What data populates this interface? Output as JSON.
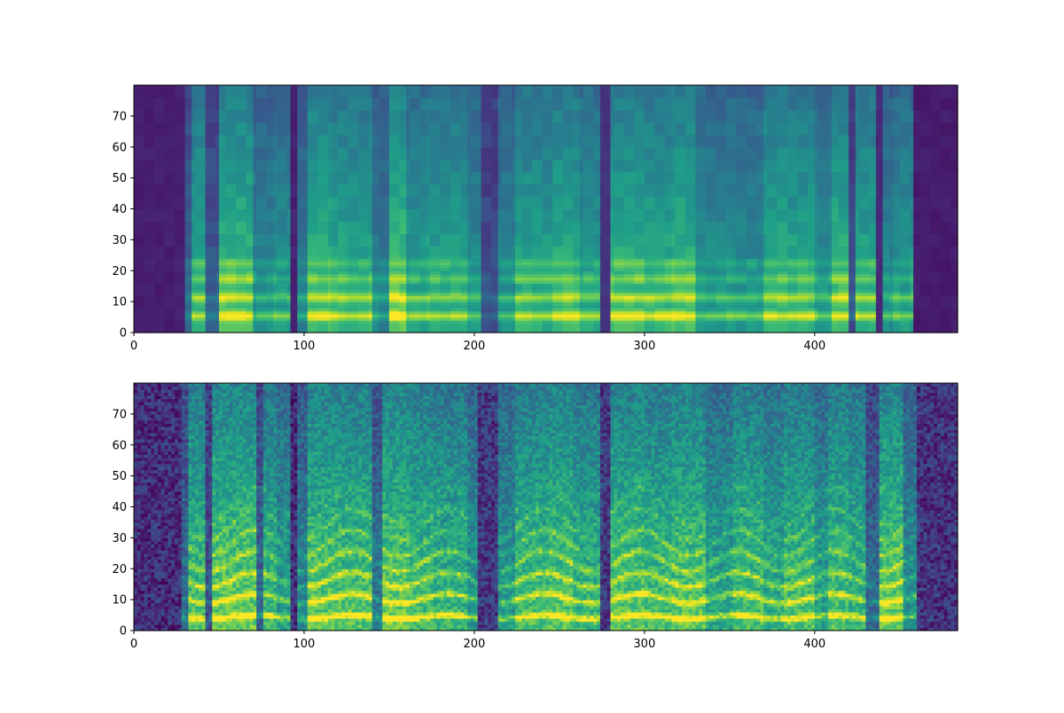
{
  "chart_data": [
    {
      "type": "heatmap",
      "panel": "top",
      "title": "",
      "xlabel": "",
      "ylabel": "",
      "xlim": [
        0,
        484
      ],
      "ylim": [
        0,
        80
      ],
      "n_frames": 484,
      "n_bins": 80,
      "xticks": [
        "0",
        "100",
        "200",
        "300",
        "400"
      ],
      "yticks": [
        "0",
        "10",
        "20",
        "30",
        "40",
        "50",
        "60",
        "70"
      ],
      "xtick_values": [
        0,
        100,
        200,
        300,
        400
      ],
      "ytick_values": [
        0,
        10,
        20,
        30,
        40,
        50,
        60,
        70
      ],
      "colormap": "viridis",
      "value_range": [
        0,
        1
      ],
      "texture": "smooth",
      "segments": [
        [
          0,
          29,
          0.04
        ],
        [
          29,
          34,
          0.3
        ],
        [
          34,
          42,
          0.6
        ],
        [
          42,
          49,
          0.25
        ],
        [
          49,
          70,
          0.68
        ],
        [
          70,
          82,
          0.45
        ],
        [
          82,
          92,
          0.5
        ],
        [
          92,
          96,
          0.06
        ],
        [
          96,
          102,
          0.4
        ],
        [
          102,
          116,
          0.66
        ],
        [
          116,
          124,
          0.62
        ],
        [
          124,
          140,
          0.6
        ],
        [
          140,
          150,
          0.4
        ],
        [
          150,
          160,
          0.72
        ],
        [
          160,
          172,
          0.55
        ],
        [
          172,
          182,
          0.58
        ],
        [
          182,
          196,
          0.58
        ],
        [
          196,
          204,
          0.48
        ],
        [
          204,
          214,
          0.2
        ],
        [
          214,
          224,
          0.45
        ],
        [
          224,
          234,
          0.6
        ],
        [
          234,
          245,
          0.58
        ],
        [
          245,
          262,
          0.64
        ],
        [
          262,
          274,
          0.55
        ],
        [
          274,
          280,
          0.15
        ],
        [
          280,
          300,
          0.65
        ],
        [
          300,
          316,
          0.62
        ],
        [
          316,
          330,
          0.66
        ],
        [
          330,
          336,
          0.5
        ],
        [
          336,
          352,
          0.5
        ],
        [
          352,
          370,
          0.48
        ],
        [
          370,
          384,
          0.62
        ],
        [
          384,
          400,
          0.6
        ],
        [
          400,
          410,
          0.5
        ],
        [
          410,
          420,
          0.66
        ],
        [
          420,
          424,
          0.2
        ],
        [
          424,
          436,
          0.6
        ],
        [
          436,
          440,
          0.1
        ],
        [
          440,
          445,
          0.45
        ],
        [
          445,
          458,
          0.52
        ],
        [
          458,
          484,
          0.03
        ]
      ],
      "harmonic_bands": [
        {
          "center": 5,
          "width": 1.4,
          "strength": 0.55
        },
        {
          "center": 11,
          "width": 1.5,
          "strength": 0.45
        },
        {
          "center": 17,
          "width": 1.5,
          "strength": 0.3
        },
        {
          "center": 22,
          "width": 1.4,
          "strength": 0.22
        }
      ]
    },
    {
      "type": "heatmap",
      "panel": "bottom",
      "title": "",
      "xlabel": "",
      "ylabel": "",
      "xlim": [
        0,
        484
      ],
      "ylim": [
        0,
        80
      ],
      "n_frames": 484,
      "n_bins": 80,
      "xticks": [
        "0",
        "100",
        "200",
        "300",
        "400"
      ],
      "yticks": [
        "0",
        "10",
        "20",
        "30",
        "40",
        "50",
        "60",
        "70"
      ],
      "xtick_values": [
        0,
        100,
        200,
        300,
        400
      ],
      "ytick_values": [
        0,
        10,
        20,
        30,
        40,
        50,
        60,
        70
      ],
      "colormap": "viridis",
      "value_range": [
        0,
        1
      ],
      "texture": "detailed",
      "segments": [
        [
          0,
          28,
          0.12
        ],
        [
          28,
          32,
          0.3
        ],
        [
          32,
          42,
          0.66
        ],
        [
          42,
          46,
          0.2
        ],
        [
          46,
          72,
          0.72
        ],
        [
          72,
          76,
          0.28
        ],
        [
          76,
          84,
          0.62
        ],
        [
          84,
          92,
          0.52
        ],
        [
          92,
          96,
          0.1
        ],
        [
          96,
          102,
          0.42
        ],
        [
          102,
          122,
          0.7
        ],
        [
          122,
          140,
          0.68
        ],
        [
          140,
          146,
          0.35
        ],
        [
          146,
          162,
          0.72
        ],
        [
          162,
          176,
          0.65
        ],
        [
          176,
          196,
          0.62
        ],
        [
          196,
          202,
          0.48
        ],
        [
          202,
          214,
          0.18
        ],
        [
          214,
          224,
          0.5
        ],
        [
          224,
          234,
          0.66
        ],
        [
          234,
          244,
          0.66
        ],
        [
          244,
          258,
          0.7
        ],
        [
          258,
          274,
          0.62
        ],
        [
          274,
          280,
          0.18
        ],
        [
          280,
          300,
          0.7
        ],
        [
          300,
          316,
          0.66
        ],
        [
          316,
          336,
          0.7
        ],
        [
          336,
          352,
          0.55
        ],
        [
          352,
          370,
          0.66
        ],
        [
          370,
          382,
          0.58
        ],
        [
          382,
          400,
          0.66
        ],
        [
          400,
          408,
          0.52
        ],
        [
          408,
          420,
          0.66
        ],
        [
          420,
          430,
          0.6
        ],
        [
          430,
          438,
          0.3
        ],
        [
          438,
          452,
          0.72
        ],
        [
          452,
          460,
          0.45
        ],
        [
          460,
          484,
          0.14
        ]
      ],
      "harmonic_bands": [
        {
          "center": 4,
          "width": 1.0,
          "strength": 0.6
        },
        {
          "center": 10,
          "width": 1.0,
          "strength": 0.5
        },
        {
          "center": 16,
          "width": 1.0,
          "strength": 0.4
        },
        {
          "center": 22,
          "width": 1.0,
          "strength": 0.32
        },
        {
          "center": 28,
          "width": 1.0,
          "strength": 0.25
        },
        {
          "center": 34,
          "width": 1.0,
          "strength": 0.18
        },
        {
          "center": 40,
          "width": 1.0,
          "strength": 0.12
        }
      ]
    }
  ]
}
